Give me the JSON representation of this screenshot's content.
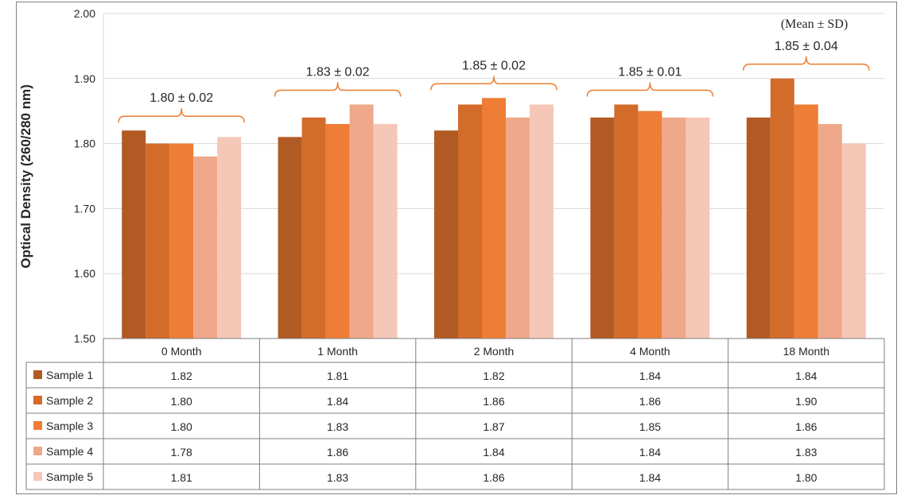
{
  "chart_data": {
    "type": "bar",
    "ylabel": "Optical Density (260/280 nm)",
    "ylim": [
      1.5,
      2.0
    ],
    "yticks": [
      "1.50",
      "1.60",
      "1.70",
      "1.80",
      "1.90",
      "2.00"
    ],
    "grid": true,
    "categories": [
      "0 Month",
      "1 Month",
      "2 Month",
      "4 Month",
      "18 Month"
    ],
    "series": [
      {
        "name": "Sample 1",
        "color": "#b25a23",
        "values": [
          1.82,
          1.81,
          1.82,
          1.84,
          1.84
        ],
        "labels": [
          "1.82",
          "1.81",
          "1.82",
          "1.84",
          "1.84"
        ]
      },
      {
        "name": "Sample 2",
        "color": "#d36b2a",
        "values": [
          1.8,
          1.84,
          1.86,
          1.86,
          1.9
        ],
        "labels": [
          "1.80",
          "1.84",
          "1.86",
          "1.86",
          "1.90"
        ]
      },
      {
        "name": "Sample 3",
        "color": "#ee7d35",
        "values": [
          1.8,
          1.83,
          1.87,
          1.85,
          1.86
        ],
        "labels": [
          "1.80",
          "1.83",
          "1.87",
          "1.85",
          "1.86"
        ]
      },
      {
        "name": "Sample 4",
        "color": "#f0a88a",
        "values": [
          1.78,
          1.86,
          1.84,
          1.84,
          1.83
        ],
        "labels": [
          "1.78",
          "1.86",
          "1.84",
          "1.84",
          "1.83"
        ]
      },
      {
        "name": "Sample 5",
        "color": "#f5c7b7",
        "values": [
          1.81,
          1.83,
          1.86,
          1.84,
          1.8
        ],
        "labels": [
          "1.81",
          "1.83",
          "1.86",
          "1.84",
          "1.80"
        ]
      }
    ],
    "group_annotations": [
      "1.80 ± 0.02",
      "1.83 ± 0.02",
      "1.85 ± 0.02",
      "1.85 ± 0.01",
      "1.85 ± 0.04"
    ],
    "note": "(Mean ± SD)",
    "bracket_color": "#ed7d31",
    "legend": "data-table"
  }
}
